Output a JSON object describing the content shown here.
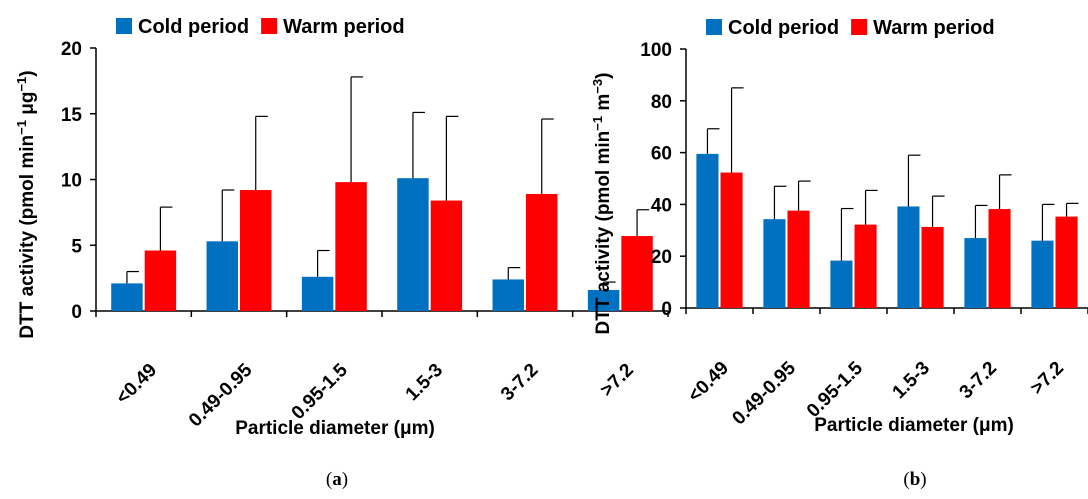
{
  "chart_data": [
    {
      "type": "bar",
      "panel_label_parts": [
        "(",
        "a",
        ")"
      ],
      "categories": [
        "<0.49",
        "0.49-0.95",
        "0.95-1.5",
        "1.5-3",
        "3-7.2",
        ">7.2"
      ],
      "series": [
        {
          "name": "Cold period",
          "color": "#0070C0",
          "values": [
            2.1,
            5.3,
            2.6,
            10.1,
            2.4,
            1.6
          ],
          "errors": [
            0.9,
            3.9,
            2.0,
            5.0,
            0.9,
            0.6
          ]
        },
        {
          "name": "Warm period",
          "color": "#FF0000",
          "values": [
            4.6,
            9.2,
            9.8,
            8.4,
            8.9,
            5.7
          ],
          "errors": [
            3.3,
            5.6,
            8.0,
            6.4,
            5.7,
            2.0
          ]
        }
      ],
      "ylim": [
        0,
        20
      ],
      "yticks": [
        0,
        5,
        10,
        15,
        20
      ],
      "ylabel_parts": [
        "DTT activity (pmol min",
        "−1",
        " μg",
        "−1",
        ")"
      ],
      "xlabel": "Particle diameter (μm)"
    },
    {
      "type": "bar",
      "panel_label_parts": [
        "(",
        "b",
        ")"
      ],
      "categories": [
        "<0.49",
        "0.49-0.95",
        "0.95-1.5",
        "1.5-3",
        "3-7.2",
        ">7.2"
      ],
      "series": [
        {
          "name": "Cold period",
          "color": "#0070C0",
          "values": [
            59.5,
            34.3,
            18.3,
            39.2,
            27.0,
            26.0
          ],
          "errors": [
            9.7,
            12.7,
            20.1,
            19.8,
            12.6,
            14.0
          ]
        },
        {
          "name": "Warm period",
          "color": "#FF0000",
          "values": [
            52.3,
            37.6,
            32.2,
            31.3,
            38.2,
            35.3
          ],
          "errors": [
            32.7,
            11.4,
            13.2,
            11.9,
            13.2,
            5.1
          ]
        }
      ],
      "ylim": [
        0,
        100
      ],
      "yticks": [
        0,
        20,
        40,
        60,
        80,
        100
      ],
      "ylabel_parts": [
        "DTT activity (pmol min",
        "−1",
        " m",
        "−3",
        ")"
      ],
      "xlabel": "Particle diameter (μm)"
    }
  ]
}
